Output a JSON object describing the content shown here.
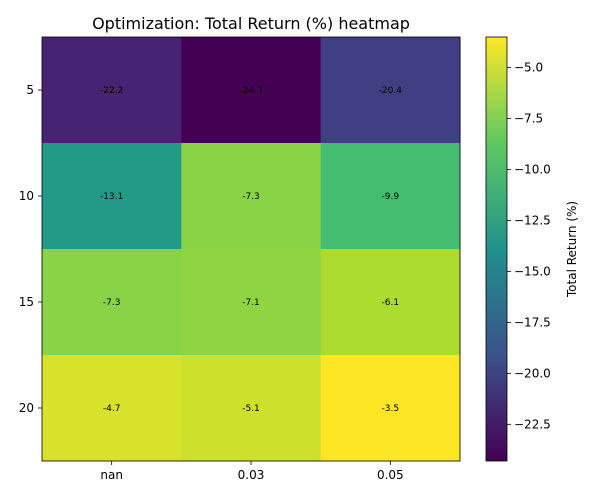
{
  "chart_data": {
    "type": "heatmap",
    "title": "Optimization: Total Return (%) heatmap",
    "x_categories": [
      "nan",
      "0.03",
      "0.05"
    ],
    "y_categories": [
      "5",
      "10",
      "15",
      "20"
    ],
    "values": [
      [
        -22.2,
        -24.3,
        -20.4
      ],
      [
        -13.1,
        -7.3,
        -9.9
      ],
      [
        -7.3,
        -7.1,
        -6.1
      ],
      [
        -4.7,
        -5.1,
        -3.5
      ]
    ],
    "labels": [
      [
        "-22.2",
        "-24.3",
        "-20.4"
      ],
      [
        "-13.1",
        "-7.3",
        "-9.9"
      ],
      [
        "-7.3",
        "-7.1",
        "-6.1"
      ],
      [
        "-4.7",
        "-5.1",
        "-3.5"
      ]
    ],
    "colorbar": {
      "label": "Total Return (%)",
      "range": [
        -24.3,
        -3.5
      ],
      "ticks": [
        -5.0,
        -7.5,
        -10.0,
        -12.5,
        -15.0,
        -17.5,
        -20.0,
        -22.5
      ],
      "tick_labels": [
        "−5.0",
        "−7.5",
        "−10.0",
        "−12.5",
        "−15.0",
        "−17.5",
        "−20.0",
        "−22.5"
      ],
      "colormap": "viridis"
    }
  }
}
